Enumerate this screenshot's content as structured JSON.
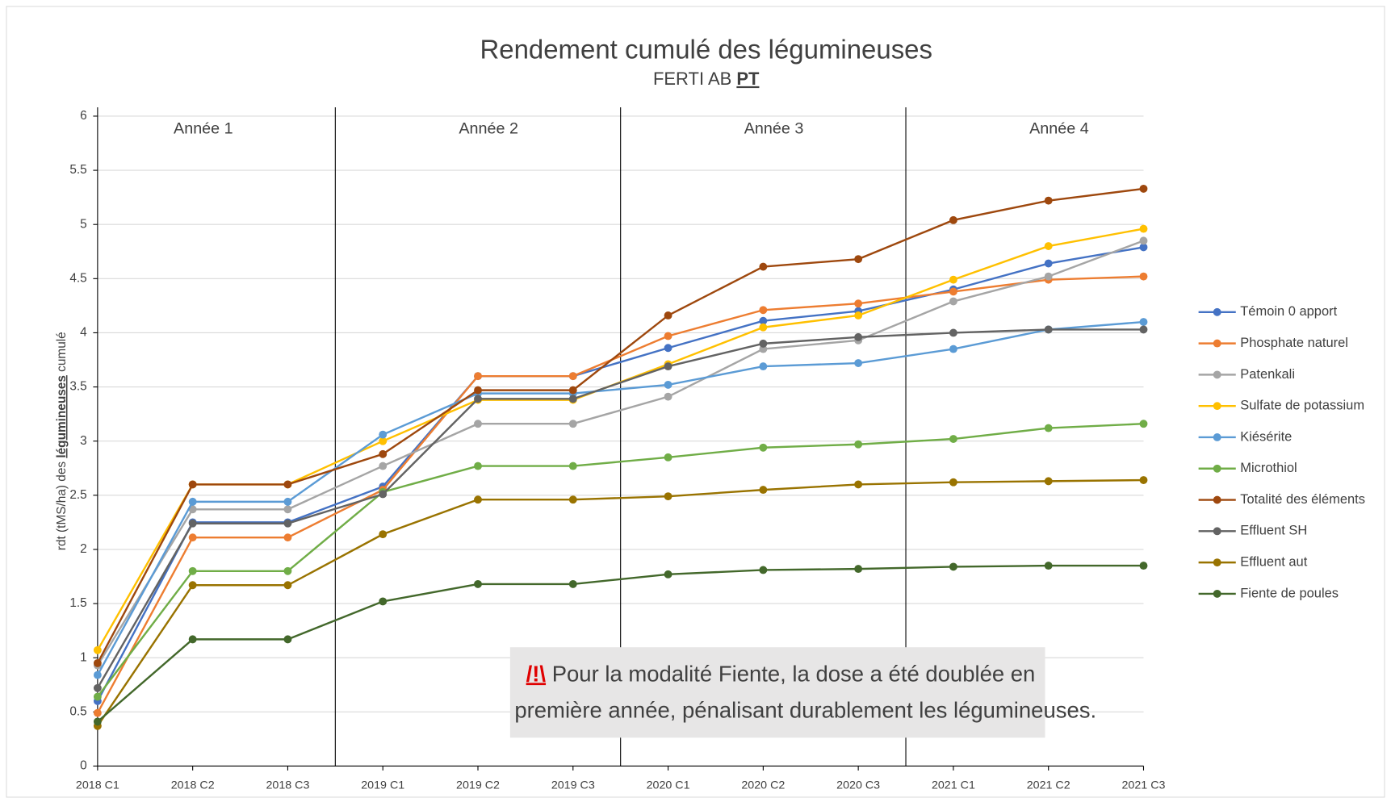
{
  "chart_data": {
    "type": "line",
    "title": "Rendement cumulé des légumineuses",
    "subtitle": {
      "text": "FERTI AB",
      "emphasis": "PT"
    },
    "ylabel": {
      "before": "rdt (tMS/ha) des",
      "emphasis": "légumineuses",
      "after": "cumulé"
    },
    "categories": [
      "2018 C1",
      "2018 C2",
      "2018 C3",
      "2019 C1",
      "2019 C2",
      "2019 C3",
      "2020 C1",
      "2020 C2",
      "2020 C3",
      "2021 C1",
      "2021 C2",
      "2021 C3"
    ],
    "ylim": [
      0,
      6
    ],
    "yticks": [
      0,
      0.5,
      1,
      1.5,
      2,
      2.5,
      3,
      3.5,
      4,
      4.5,
      5,
      5.5,
      6
    ],
    "grid": true,
    "legend": "right",
    "series": [
      {
        "name": "Témoin 0 apport",
        "color": "#4472c4",
        "values": [
          0.6,
          2.25,
          2.25,
          2.58,
          3.6,
          3.6,
          3.86,
          4.11,
          4.2,
          4.4,
          4.64,
          4.79
        ]
      },
      {
        "name": "Phosphate naturel",
        "color": "#ed7d31",
        "values": [
          0.49,
          2.11,
          2.11,
          2.55,
          3.6,
          3.6,
          3.97,
          4.21,
          4.27,
          4.38,
          4.49,
          4.52
        ]
      },
      {
        "name": "Patenkali",
        "color": "#a5a5a5",
        "values": [
          0.93,
          2.37,
          2.37,
          2.77,
          3.16,
          3.16,
          3.41,
          3.85,
          3.93,
          4.29,
          4.52,
          4.85
        ]
      },
      {
        "name": "Sulfate de potassium",
        "color": "#ffc000",
        "values": [
          1.07,
          2.6,
          2.6,
          3.0,
          3.38,
          3.38,
          3.71,
          4.05,
          4.16,
          4.49,
          4.8,
          4.96
        ]
      },
      {
        "name": "Kiésérite",
        "color": "#5b9bd5",
        "values": [
          0.84,
          2.44,
          2.44,
          3.06,
          3.44,
          3.44,
          3.52,
          3.69,
          3.72,
          3.85,
          4.03,
          4.1
        ]
      },
      {
        "name": "Microthiol",
        "color": "#70ad47",
        "values": [
          0.64,
          1.8,
          1.8,
          2.53,
          2.77,
          2.77,
          2.85,
          2.94,
          2.97,
          3.02,
          3.12,
          3.16
        ]
      },
      {
        "name": "Totalité des éléments",
        "color": "#9e480e",
        "values": [
          0.95,
          2.6,
          2.6,
          2.88,
          3.47,
          3.47,
          4.16,
          4.61,
          4.68,
          5.04,
          5.22,
          5.33
        ]
      },
      {
        "name": "Effluent SH",
        "color": "#636363",
        "values": [
          0.72,
          2.24,
          2.24,
          2.51,
          3.39,
          3.39,
          3.69,
          3.9,
          3.96,
          4.0,
          4.03,
          4.03
        ]
      },
      {
        "name": "Effluent aut",
        "color": "#997300",
        "values": [
          0.37,
          1.67,
          1.67,
          2.14,
          2.46,
          2.46,
          2.49,
          2.55,
          2.6,
          2.62,
          2.63,
          2.64
        ]
      },
      {
        "name": "Fiente de poules",
        "color": "#43682b",
        "values": [
          0.41,
          1.17,
          1.17,
          1.52,
          1.68,
          1.68,
          1.77,
          1.81,
          1.82,
          1.84,
          1.85,
          1.85
        ]
      }
    ],
    "years": [
      "Année 1",
      "Année 2",
      "Année 3",
      "Année 4"
    ],
    "note": {
      "icon": "/!\\",
      "lines": [
        "Pour la modalité Fiente, la dose a été doublée en",
        "première année, pénalisant durablement les légumineuses."
      ]
    }
  }
}
